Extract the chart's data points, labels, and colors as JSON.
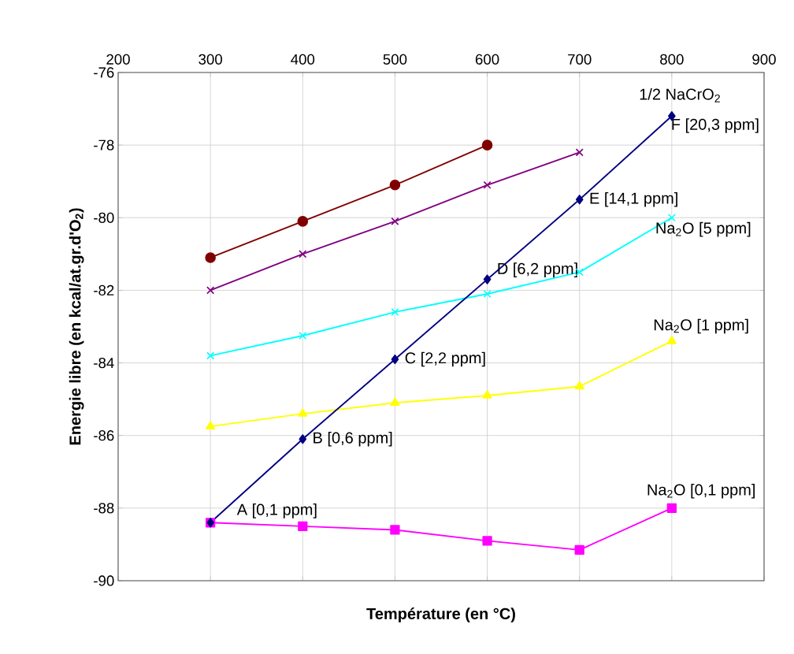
{
  "chart_data": {
    "type": "line",
    "xlabel": "Température (en °C)",
    "ylabel": "Energie libre (en kcal/at.gr.d'O$_{2}$)",
    "x": [
      300,
      400,
      500,
      600,
      700,
      800
    ],
    "xlim": [
      200,
      900
    ],
    "xticks": [
      200,
      300,
      400,
      500,
      600,
      700,
      800,
      900
    ],
    "ylim": [
      -90,
      -76
    ],
    "yticks": [
      -90,
      -88,
      -86,
      -84,
      -82,
      -80,
      -78,
      -76
    ],
    "grid": true,
    "line_style": "solid",
    "series": [
      {
        "color": "#800000",
        "marker": "circle",
        "values": [
          -81.1,
          -80.1,
          -79.1,
          -78.0,
          null,
          null
        ]
      },
      {
        "color": "#800080",
        "marker": "cross",
        "values": [
          -82.0,
          -81.0,
          -80.1,
          -79.1,
          -78.2,
          null
        ]
      },
      {
        "color": "#00ffff",
        "marker": "cross",
        "values": [
          -83.8,
          -83.25,
          -82.6,
          -82.1,
          -81.5,
          -80.0
        ]
      },
      {
        "color": "#ffff00",
        "marker": "triangle",
        "values": [
          -85.75,
          -85.4,
          -85.1,
          -84.9,
          -84.65,
          -83.4
        ]
      },
      {
        "color": "#ff00ff",
        "marker": "square",
        "values": [
          -88.4,
          -88.5,
          -88.6,
          -88.9,
          -89.15,
          -88.0
        ]
      },
      {
        "color": "#000080",
        "marker": "diamond",
        "values": [
          -88.4,
          -86.1,
          -83.9,
          -81.7,
          -79.5,
          -77.2
        ]
      }
    ],
    "annotations": [
      {
        "text": "1/2 NaCrO$_{2}$",
        "x": 800,
        "y": -77.2
      },
      {
        "text": "F [20,3 ppm]",
        "x": 800,
        "y": -77.2
      },
      {
        "text": "E [14,1 ppm]",
        "x": 700,
        "y": -79.5
      },
      {
        "text": "Na$_{2}$O [5 ppm]",
        "x": 800,
        "y": -80.0
      },
      {
        "text": "D [6,2 ppm]",
        "x": 600,
        "y": -81.7
      },
      {
        "text": "Na$_{2}$O [1 ppm]",
        "x": 800,
        "y": -83.4
      },
      {
        "text": "C [2,2 ppm]",
        "x": 500,
        "y": -83.9
      },
      {
        "text": "B [0,6 ppm]",
        "x": 400,
        "y": -86.1
      },
      {
        "text": "Na$_{2}$O [0,1 ppm]",
        "x": 800,
        "y": -88.0
      },
      {
        "text": "A [0,1 ppm]",
        "x": 300,
        "y": -88.4
      }
    ]
  }
}
